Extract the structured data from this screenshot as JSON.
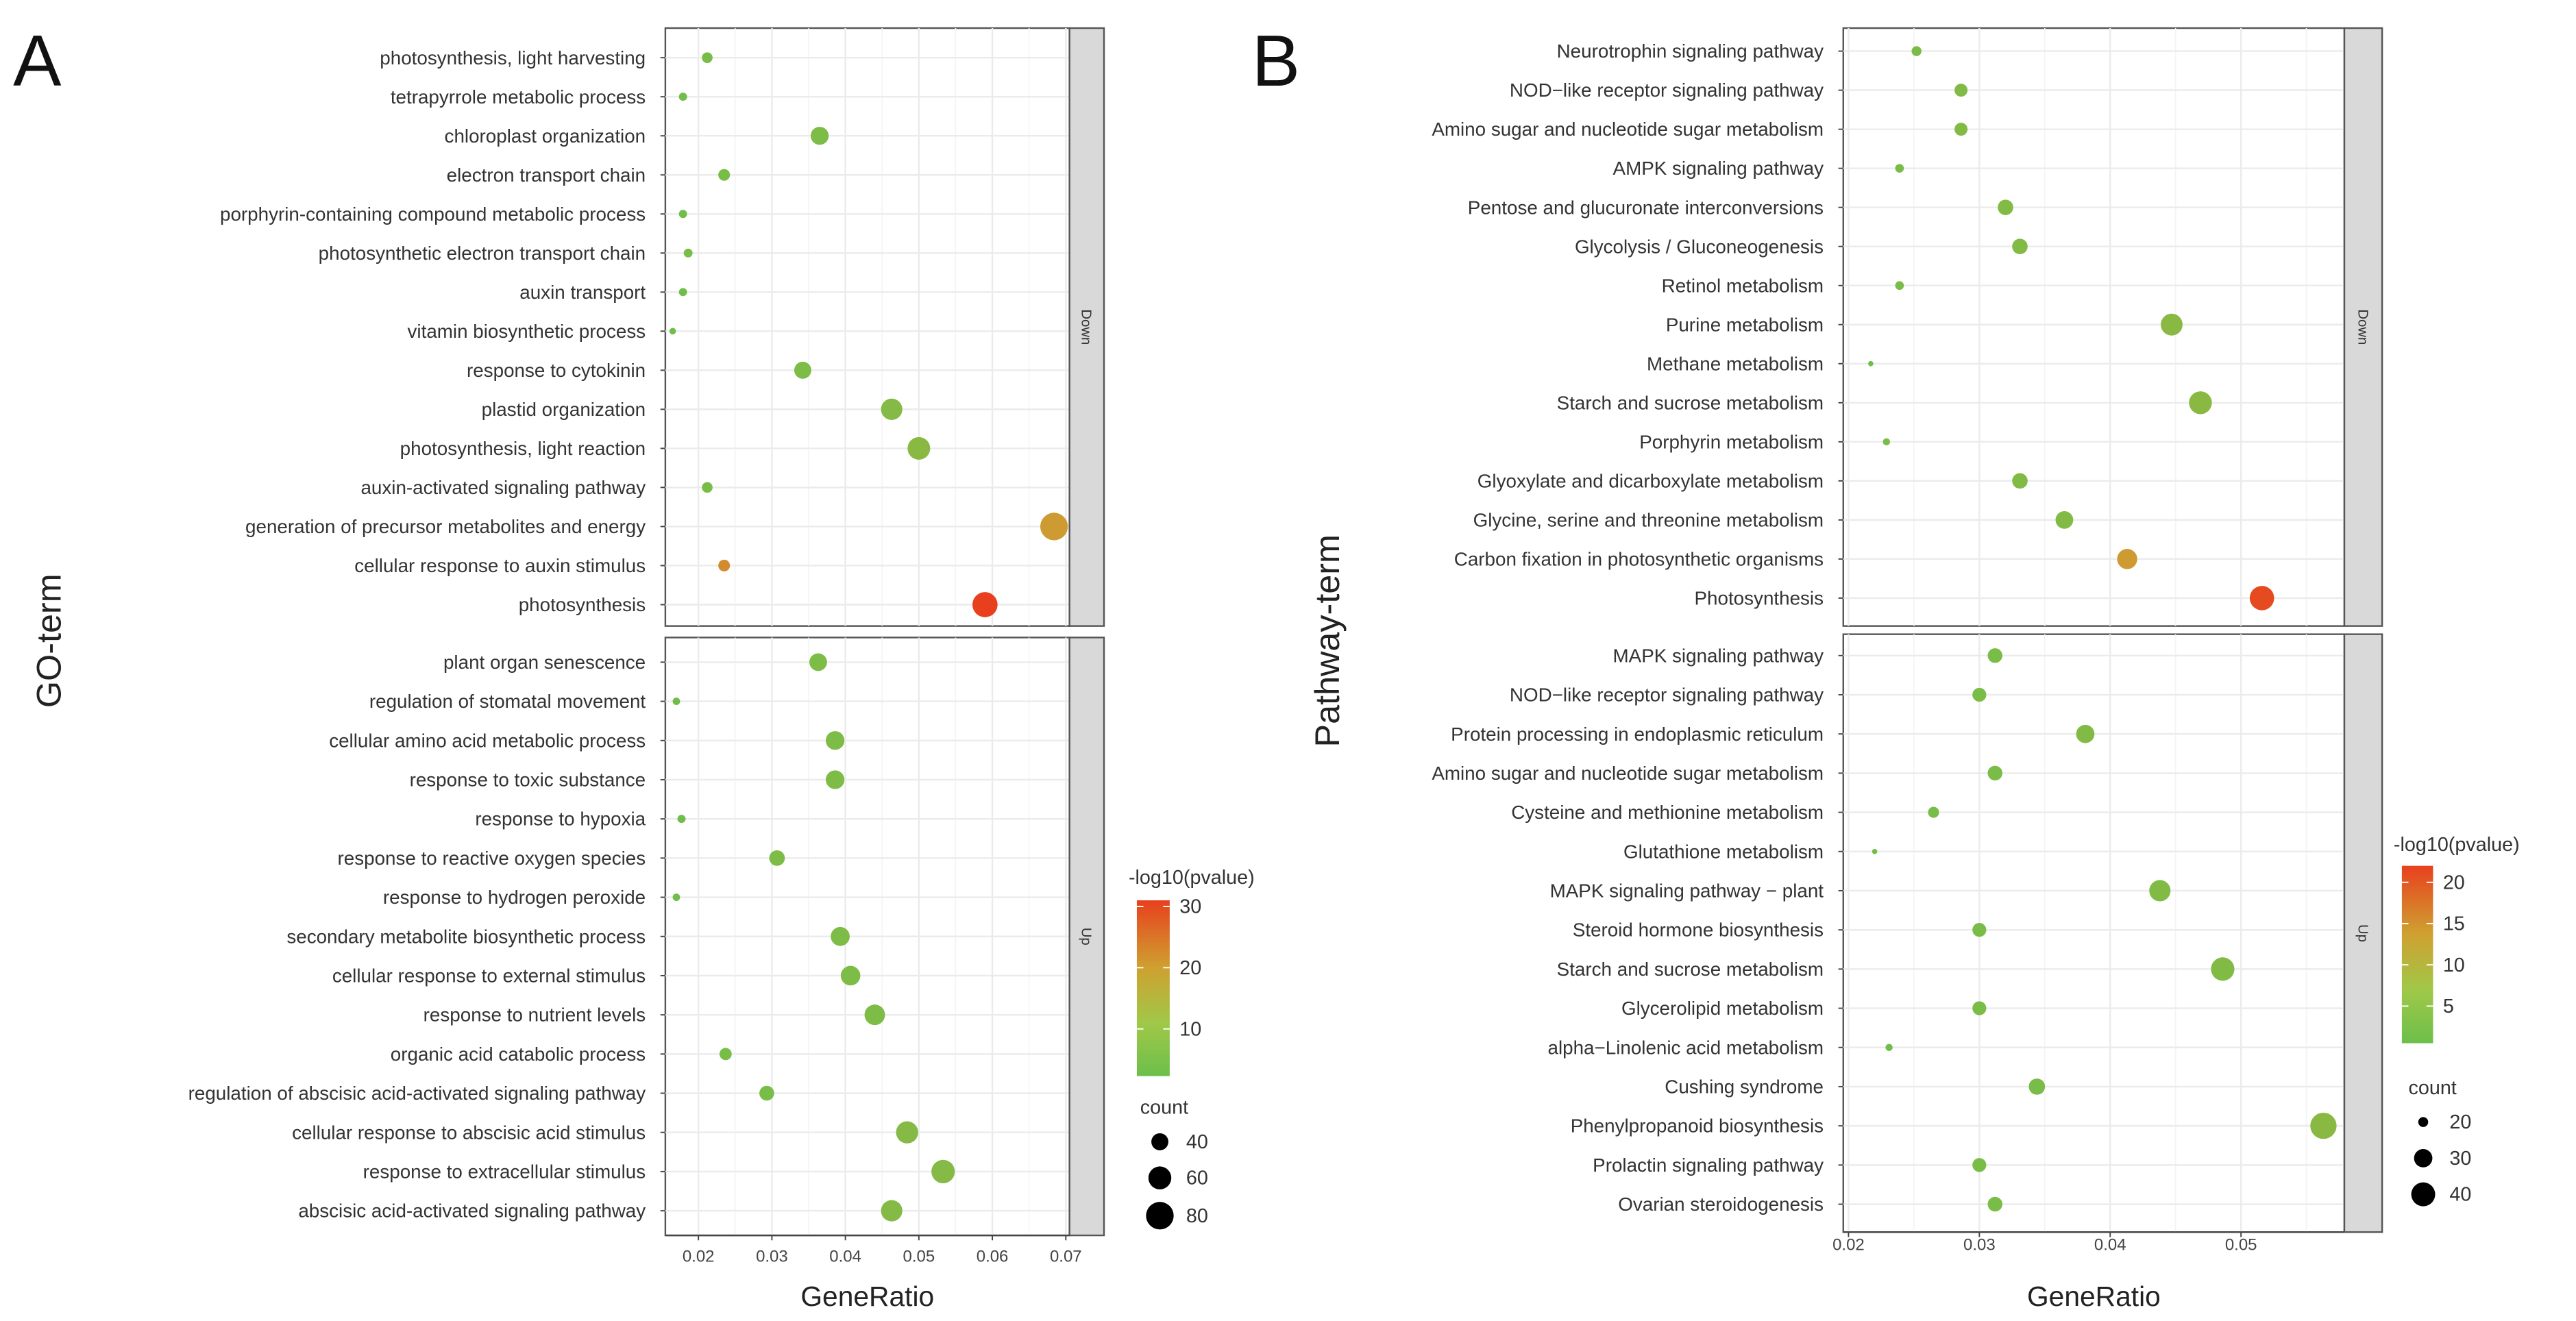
{
  "chart_data": [
    {
      "type": "scatter",
      "panel_label": "A",
      "xlabel": "GeneRatio",
      "ylabel": "GO-term",
      "xlim": [
        0.0155,
        0.0705
      ],
      "xticks": [
        "0.02",
        "0.03",
        "0.04",
        "0.05",
        "0.06",
        "0.07"
      ],
      "xtick_values": [
        0.02,
        0.03,
        0.04,
        0.05,
        0.06,
        0.07
      ],
      "color_legend": {
        "title": "-log10(pvalue)",
        "range": [
          2.3,
          31
        ],
        "ticks": [
          "10",
          "20",
          "30"
        ],
        "tick_values": [
          10,
          20,
          30
        ]
      },
      "size_legend": {
        "title": "count",
        "labels": [
          "40",
          "60",
          "80"
        ],
        "values": [
          40,
          60,
          80
        ],
        "range": [
          19,
          80
        ]
      },
      "facets": [
        {
          "name": "Down",
          "terms": [
            {
              "term": "photosynthesis, light harvesting",
              "x": 0.0212,
              "count": 25,
              "p": 4
            },
            {
              "term": "tetrapyrrole metabolic process",
              "x": 0.0179,
              "count": 21,
              "p": 3
            },
            {
              "term": "chloroplast organization",
              "x": 0.0365,
              "count": 43,
              "p": 5
            },
            {
              "term": "electron transport chain",
              "x": 0.0235,
              "count": 27,
              "p": 4
            },
            {
              "term": "porphyrin-containing compound metabolic process",
              "x": 0.0179,
              "count": 21,
              "p": 3
            },
            {
              "term": "photosynthetic electron transport chain",
              "x": 0.0186,
              "count": 22,
              "p": 4
            },
            {
              "term": "auxin transport",
              "x": 0.0179,
              "count": 21,
              "p": 3
            },
            {
              "term": "vitamin biosynthetic process",
              "x": 0.0165,
              "count": 19,
              "p": 3
            },
            {
              "term": "response to cytokinin",
              "x": 0.0342,
              "count": 40,
              "p": 5
            },
            {
              "term": "plastid organization",
              "x": 0.0463,
              "count": 54,
              "p": 6
            },
            {
              "term": "photosynthesis, light reaction",
              "x": 0.05,
              "count": 59,
              "p": 7
            },
            {
              "term": "auxin-activated signaling pathway",
              "x": 0.0212,
              "count": 25,
              "p": 4
            },
            {
              "term": "generation of precursor metabolites and energy",
              "x": 0.0684,
              "count": 80,
              "p": 19
            },
            {
              "term": "cellular response to auxin stimulus",
              "x": 0.0235,
              "count": 27,
              "p": 21
            },
            {
              "term": "photosynthesis",
              "x": 0.059,
              "count": 69,
              "p": 31
            }
          ]
        },
        {
          "name": "Up",
          "terms": [
            {
              "term": "plant organ senescence",
              "x": 0.0363,
              "count": 42,
              "p": 5
            },
            {
              "term": "regulation of stomatal movement",
              "x": 0.017,
              "count": 20,
              "p": 3
            },
            {
              "term": "cellular amino acid metabolic process",
              "x": 0.0386,
              "count": 45,
              "p": 5
            },
            {
              "term": "response to toxic substance",
              "x": 0.0386,
              "count": 45,
              "p": 5
            },
            {
              "term": "response to hypoxia",
              "x": 0.0177,
              "count": 21,
              "p": 3
            },
            {
              "term": "response to reactive oxygen species",
              "x": 0.0307,
              "count": 36,
              "p": 5
            },
            {
              "term": "response to hydrogen peroxide",
              "x": 0.017,
              "count": 20,
              "p": 3
            },
            {
              "term": "secondary metabolite biosynthetic process",
              "x": 0.0393,
              "count": 46,
              "p": 5
            },
            {
              "term": "cellular response to external stimulus",
              "x": 0.0407,
              "count": 48,
              "p": 5
            },
            {
              "term": "response to nutrient levels",
              "x": 0.044,
              "count": 51,
              "p": 5
            },
            {
              "term": "organic acid catabolic process",
              "x": 0.0237,
              "count": 28,
              "p": 4
            },
            {
              "term": "regulation of abscisic acid-activated signaling pathway",
              "x": 0.0293,
              "count": 34,
              "p": 4
            },
            {
              "term": "cellular response to abscisic acid stimulus",
              "x": 0.0484,
              "count": 57,
              "p": 6
            },
            {
              "term": "response to extracellular stimulus",
              "x": 0.0533,
              "count": 62,
              "p": 6
            },
            {
              "term": "abscisic acid-activated signaling pathway",
              "x": 0.0463,
              "count": 54,
              "p": 6
            }
          ]
        }
      ]
    },
    {
      "type": "scatter",
      "panel_label": "B",
      "xlabel": "GeneRatio",
      "ylabel": "Pathway-term",
      "xlim": [
        0.0196,
        0.0579
      ],
      "xticks": [
        "0.02",
        "0.03",
        "0.04",
        "0.05"
      ],
      "xtick_values": [
        0.02,
        0.03,
        0.04,
        0.05
      ],
      "color_legend": {
        "title": "-log10(pvalue)",
        "range": [
          0.5,
          22
        ],
        "ticks": [
          "5",
          "10",
          "15",
          "20"
        ],
        "tick_values": [
          5,
          10,
          15,
          20
        ]
      },
      "size_legend": {
        "title": "count",
        "labels": [
          "20",
          "30",
          "40"
        ],
        "values": [
          20,
          30,
          40
        ],
        "range": [
          17,
          45
        ]
      },
      "facets": [
        {
          "name": "Down",
          "terms": [
            {
              "term": "Neurotrophin signaling pathway",
              "x": 0.0252,
              "count": 20,
              "p": 2
            },
            {
              "term": "NOD−like receptor signaling pathway",
              "x": 0.0286,
              "count": 23,
              "p": 3
            },
            {
              "term": "Amino sugar and nucleotide sugar metabolism",
              "x": 0.0286,
              "count": 23,
              "p": 3
            },
            {
              "term": "AMPK signaling pathway",
              "x": 0.0239,
              "count": 19,
              "p": 2
            },
            {
              "term": "Pentose and glucuronate interconversions",
              "x": 0.032,
              "count": 26,
              "p": 3
            },
            {
              "term": "Glycolysis / Gluconeogenesis",
              "x": 0.0331,
              "count": 26,
              "p": 3
            },
            {
              "term": "Retinol metabolism",
              "x": 0.0239,
              "count": 19,
              "p": 2
            },
            {
              "term": "Purine metabolism",
              "x": 0.0447,
              "count": 36,
              "p": 4
            },
            {
              "term": "Methane metabolism",
              "x": 0.0217,
              "count": 17,
              "p": 1
            },
            {
              "term": "Starch and sucrose metabolism",
              "x": 0.0469,
              "count": 38,
              "p": 4
            },
            {
              "term": "Porphyrin metabolism",
              "x": 0.0229,
              "count": 18,
              "p": 2
            },
            {
              "term": "Glyoxylate and dicarboxylate metabolism",
              "x": 0.0331,
              "count": 26,
              "p": 3
            },
            {
              "term": "Glycine, serine and threonine metabolism",
              "x": 0.0365,
              "count": 29,
              "p": 3
            },
            {
              "term": "Carbon fixation in photosynthetic organisms",
              "x": 0.0413,
              "count": 33,
              "p": 13
            },
            {
              "term": "Photosynthesis",
              "x": 0.0516,
              "count": 41,
              "p": 21
            }
          ]
        },
        {
          "name": "Up",
          "terms": [
            {
              "term": "MAPK signaling pathway",
              "x": 0.0312,
              "count": 25,
              "p": 2
            },
            {
              "term": "NOD−like receptor signaling pathway",
              "x": 0.03,
              "count": 24,
              "p": 2
            },
            {
              "term": "Protein processing in endoplasmic reticulum",
              "x": 0.0381,
              "count": 30,
              "p": 3
            },
            {
              "term": "Amino sugar and nucleotide sugar metabolism",
              "x": 0.0312,
              "count": 25,
              "p": 2
            },
            {
              "term": "Cysteine and methionine metabolism",
              "x": 0.0265,
              "count": 21,
              "p": 2
            },
            {
              "term": "Glutathione metabolism",
              "x": 0.022,
              "count": 17,
              "p": 1
            },
            {
              "term": "MAPK signaling pathway − plant",
              "x": 0.0438,
              "count": 35,
              "p": 3
            },
            {
              "term": "Steroid hormone biosynthesis",
              "x": 0.03,
              "count": 24,
              "p": 2
            },
            {
              "term": "Starch and sucrose metabolism",
              "x": 0.0486,
              "count": 39,
              "p": 3
            },
            {
              "term": "Glycerolipid metabolism",
              "x": 0.03,
              "count": 24,
              "p": 2
            },
            {
              "term": "alpha−Linolenic acid metabolism",
              "x": 0.0231,
              "count": 18,
              "p": 1
            },
            {
              "term": "Cushing syndrome",
              "x": 0.0344,
              "count": 27,
              "p": 2
            },
            {
              "term": "Phenylpropanoid biosynthesis",
              "x": 0.0563,
              "count": 45,
              "p": 4
            },
            {
              "term": "Prolactin signaling pathway",
              "x": 0.03,
              "count": 24,
              "p": 2
            },
            {
              "term": "Ovarian steroidogenesis",
              "x": 0.0312,
              "count": 25,
              "p": 2
            }
          ]
        }
      ]
    }
  ],
  "colors": {
    "low": "#6cbf4a",
    "mid": "#c8ad36",
    "high": "#e8401e",
    "strip": "#d9d9d9",
    "grid": "#ebebeb"
  }
}
